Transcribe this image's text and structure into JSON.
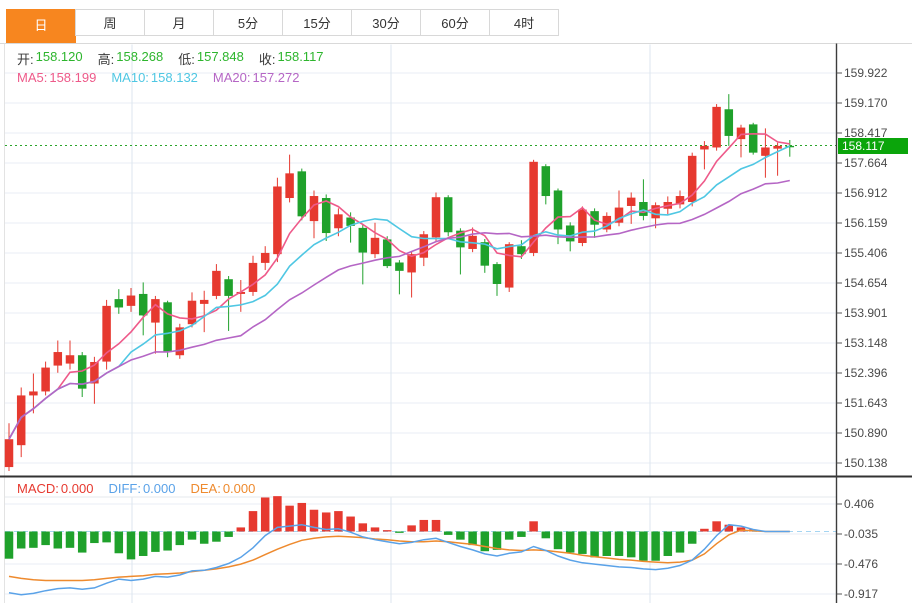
{
  "tabs": [
    {
      "id": "day",
      "label": "日",
      "active": true
    },
    {
      "id": "week",
      "label": "周",
      "active": false
    },
    {
      "id": "month",
      "label": "月",
      "active": false
    },
    {
      "id": "5min",
      "label": "5分",
      "active": false
    },
    {
      "id": "15min",
      "label": "15分",
      "active": false
    },
    {
      "id": "30min",
      "label": "30分",
      "active": false
    },
    {
      "id": "60min",
      "label": "60分",
      "active": false
    },
    {
      "id": "4hour",
      "label": "4时",
      "active": false
    }
  ],
  "info": {
    "open_label": "开:",
    "open_value": "158.120",
    "high_label": "高:",
    "high_value": "158.268",
    "low_label": "低:",
    "low_value": "157.848",
    "close_label": "收:",
    "close_value": "158.117"
  },
  "ma_header": {
    "ma5_label": "MA5:",
    "ma5_value": "158.199",
    "ma10_label": "MA10:",
    "ma10_value": "158.132",
    "ma20_label": "MA20:",
    "ma20_value": "157.272"
  },
  "macd_header": {
    "macd_label": "MACD:",
    "macd_value": "0.000",
    "diff_label": "DIFF:",
    "diff_value": "0.000",
    "dea_label": "DEA:",
    "dea_value": "0.000"
  },
  "axis": {
    "price_labels": [
      "159.922",
      "159.170",
      "158.417",
      "157.664",
      "156.912",
      "156.159",
      "155.406",
      "154.654",
      "153.901",
      "153.148",
      "152.396",
      "151.643",
      "150.890",
      "150.138"
    ],
    "current_price_label": "158.117",
    "macd_labels": [
      "0.406",
      "-0.035",
      "-0.476",
      "-0.917"
    ]
  },
  "colors": {
    "up": "#e6392f",
    "down": "#1fa12b",
    "ma5": "#ee5a8a",
    "ma10": "#4fc7e3",
    "ma20": "#b566c5",
    "diff": "#5aa2e8",
    "dea": "#ee8a2e",
    "tab_active": "#f7861f",
    "price_tag_bg": "#0ba50b",
    "ohlc_value": "#2db52d",
    "dotted_line": "#2aa52a",
    "zero_line": "#a5d5f2",
    "grid": "#e9eef4",
    "vgrid": "#dce6ef",
    "axis_line": "#3c3c3c",
    "axis_text": "#4a4a4a"
  },
  "chart_data": {
    "type": "candlestick",
    "title": "Daily K-line with MA5/MA10/MA20 and MACD",
    "legend": [
      "MA5",
      "MA10",
      "MA20",
      "MACD",
      "DIFF",
      "DEA"
    ],
    "price_axis_ticks": [
      159.922,
      159.17,
      158.417,
      157.664,
      156.912,
      156.159,
      155.406,
      154.654,
      153.901,
      153.148,
      152.396,
      151.643,
      150.89,
      150.138
    ],
    "current_price": 158.117,
    "candle_format": "[open,high,low,close]",
    "candles": [
      [
        150.05,
        151.15,
        149.95,
        150.75
      ],
      [
        150.6,
        152.05,
        150.3,
        151.85
      ],
      [
        151.85,
        152.4,
        151.4,
        151.95
      ],
      [
        151.95,
        152.7,
        151.85,
        152.55
      ],
      [
        152.6,
        153.23,
        152.42,
        152.94
      ],
      [
        152.65,
        153.23,
        152.5,
        152.86
      ],
      [
        152.86,
        152.94,
        151.81,
        152.02
      ],
      [
        152.15,
        152.82,
        151.64,
        152.69
      ],
      [
        152.7,
        154.25,
        152.5,
        154.1
      ],
      [
        154.27,
        154.52,
        153.9,
        154.06
      ],
      [
        154.1,
        154.55,
        153.95,
        154.36
      ],
      [
        154.4,
        154.69,
        153.36,
        153.86
      ],
      [
        153.68,
        154.35,
        152.9,
        154.27
      ],
      [
        154.19,
        154.23,
        152.81,
        152.94
      ],
      [
        152.86,
        153.65,
        152.77,
        153.56
      ],
      [
        153.64,
        154.44,
        153.56,
        154.23
      ],
      [
        154.15,
        154.48,
        153.44,
        154.25
      ],
      [
        154.35,
        155.15,
        154.27,
        154.98
      ],
      [
        154.77,
        154.85,
        153.47,
        154.35
      ],
      [
        154.4,
        154.75,
        153.95,
        154.45
      ],
      [
        154.45,
        155.36,
        154.35,
        155.18
      ],
      [
        155.18,
        155.6,
        155.0,
        155.43
      ],
      [
        155.4,
        157.32,
        155.2,
        157.1
      ],
      [
        156.81,
        157.9,
        156.7,
        157.43
      ],
      [
        157.48,
        157.55,
        156.25,
        156.35
      ],
      [
        156.23,
        157.0,
        155.8,
        156.86
      ],
      [
        156.81,
        156.9,
        155.73,
        155.93
      ],
      [
        156.05,
        156.55,
        155.85,
        156.4
      ],
      [
        156.32,
        156.45,
        155.69,
        156.11
      ],
      [
        156.06,
        156.15,
        154.64,
        155.44
      ],
      [
        155.4,
        156.19,
        155.3,
        155.81
      ],
      [
        155.77,
        155.85,
        155.05,
        155.1
      ],
      [
        155.19,
        155.25,
        154.39,
        154.98
      ],
      [
        154.94,
        155.48,
        154.31,
        155.4
      ],
      [
        155.31,
        155.98,
        155.1,
        155.9
      ],
      [
        155.82,
        156.95,
        155.7,
        156.83
      ],
      [
        156.83,
        156.88,
        155.85,
        155.95
      ],
      [
        155.99,
        156.05,
        154.89,
        155.57
      ],
      [
        155.53,
        156.07,
        155.45,
        155.86
      ],
      [
        155.7,
        155.78,
        154.93,
        155.11
      ],
      [
        155.15,
        155.2,
        154.35,
        154.65
      ],
      [
        154.56,
        155.7,
        154.45,
        155.65
      ],
      [
        155.6,
        155.75,
        155.28,
        155.4
      ],
      [
        155.43,
        157.77,
        155.35,
        157.72
      ],
      [
        157.61,
        157.66,
        156.65,
        156.86
      ],
      [
        157.0,
        157.05,
        155.65,
        156.02
      ],
      [
        156.12,
        156.2,
        155.47,
        155.72
      ],
      [
        155.68,
        156.6,
        155.6,
        156.52
      ],
      [
        156.48,
        156.55,
        155.81,
        156.14
      ],
      [
        156.02,
        156.45,
        155.95,
        156.36
      ],
      [
        156.19,
        157.0,
        156.1,
        156.57
      ],
      [
        156.61,
        156.95,
        156.16,
        156.82
      ],
      [
        156.71,
        157.28,
        156.25,
        156.36
      ],
      [
        156.3,
        156.7,
        156.05,
        156.63
      ],
      [
        156.54,
        156.85,
        156.4,
        156.71
      ],
      [
        156.65,
        157.0,
        156.55,
        156.86
      ],
      [
        156.71,
        157.95,
        156.6,
        157.87
      ],
      [
        158.03,
        158.24,
        157.53,
        158.12
      ],
      [
        158.08,
        159.17,
        158.0,
        159.1
      ],
      [
        159.04,
        159.42,
        158.12,
        158.37
      ],
      [
        158.29,
        158.65,
        157.83,
        158.58
      ],
      [
        158.66,
        158.7,
        157.9,
        157.95
      ],
      [
        157.87,
        158.56,
        157.32,
        158.08
      ],
      [
        158.05,
        158.2,
        157.37,
        158.12
      ],
      [
        158.12,
        158.268,
        157.848,
        158.117
      ]
    ],
    "ma_periods": [
      5,
      10,
      20
    ],
    "macd": {
      "axis_ticks": [
        0.406,
        -0.035,
        -0.476,
        -0.917
      ],
      "bars": [
        -0.4,
        -0.25,
        -0.24,
        -0.2,
        -0.25,
        -0.24,
        -0.31,
        -0.17,
        -0.16,
        -0.32,
        -0.41,
        -0.36,
        -0.3,
        -0.28,
        -0.2,
        -0.12,
        -0.18,
        -0.15,
        -0.08,
        0.06,
        0.3,
        0.5,
        0.52,
        0.38,
        0.42,
        0.32,
        0.28,
        0.3,
        0.22,
        0.12,
        0.06,
        0.02,
        -0.02,
        0.09,
        0.17,
        0.17,
        -0.05,
        -0.12,
        -0.2,
        -0.29,
        -0.27,
        -0.12,
        -0.08,
        0.15,
        -0.1,
        -0.26,
        -0.31,
        -0.33,
        -0.38,
        -0.36,
        -0.36,
        -0.38,
        -0.43,
        -0.43,
        -0.36,
        -0.31,
        -0.18,
        0.04,
        0.15,
        0.1,
        0.06,
        0.03,
        0.0,
        0.0,
        0.0
      ],
      "diff": [
        -0.9,
        -0.93,
        -0.91,
        -0.87,
        -0.84,
        -0.83,
        -0.85,
        -0.83,
        -0.76,
        -0.7,
        -0.72,
        -0.7,
        -0.66,
        -0.67,
        -0.64,
        -0.58,
        -0.57,
        -0.53,
        -0.47,
        -0.38,
        -0.24,
        -0.06,
        0.06,
        0.08,
        0.1,
        0.06,
        0.03,
        0.04,
        -0.01,
        -0.08,
        -0.12,
        -0.15,
        -0.18,
        -0.16,
        -0.12,
        -0.1,
        -0.16,
        -0.22,
        -0.27,
        -0.33,
        -0.36,
        -0.32,
        -0.3,
        -0.22,
        -0.28,
        -0.36,
        -0.42,
        -0.46,
        -0.48,
        -0.5,
        -0.52,
        -0.53,
        -0.55,
        -0.56,
        -0.54,
        -0.5,
        -0.42,
        -0.26,
        -0.06,
        0.1,
        0.08,
        0.03,
        0.0,
        0.0,
        0.0
      ],
      "dea": [
        -0.66,
        -0.69,
        -0.71,
        -0.72,
        -0.72,
        -0.72,
        -0.72,
        -0.71,
        -0.69,
        -0.67,
        -0.66,
        -0.65,
        -0.63,
        -0.62,
        -0.61,
        -0.59,
        -0.57,
        -0.55,
        -0.52,
        -0.48,
        -0.42,
        -0.34,
        -0.26,
        -0.19,
        -0.13,
        -0.1,
        -0.08,
        -0.07,
        -0.08,
        -0.09,
        -0.11,
        -0.12,
        -0.14,
        -0.15,
        -0.15,
        -0.14,
        -0.15,
        -0.17,
        -0.19,
        -0.22,
        -0.25,
        -0.27,
        -0.28,
        -0.27,
        -0.28,
        -0.3,
        -0.32,
        -0.35,
        -0.37,
        -0.39,
        -0.41,
        -0.42,
        -0.44,
        -0.45,
        -0.46,
        -0.45,
        -0.42,
        -0.33,
        -0.18,
        -0.05,
        0.02,
        0.01,
        0.0,
        0.0,
        0.0
      ]
    }
  }
}
